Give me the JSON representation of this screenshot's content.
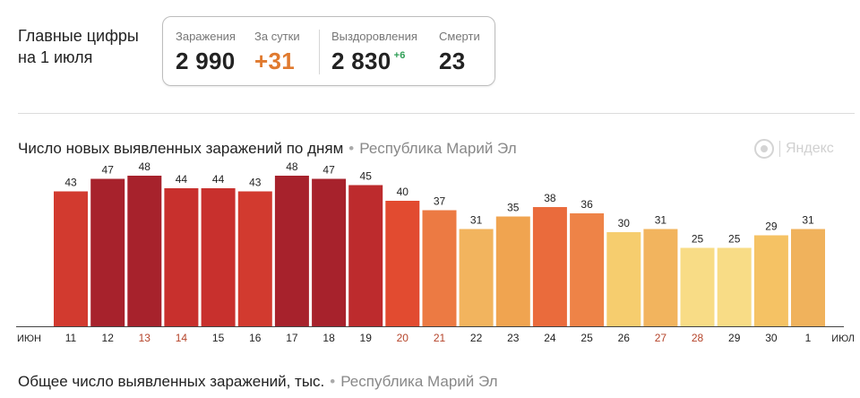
{
  "headline": {
    "line1": "Главные цифры",
    "line2": "на 1 июля"
  },
  "stats": {
    "infected_label": "Заражения",
    "infected_value": "2 990",
    "daily_label": "За сутки",
    "daily_value": "+31",
    "recovered_label": "Выздоровления",
    "recovered_value": "2 830",
    "recovered_delta": "+6",
    "deaths_label": "Смерти",
    "deaths_value": "23"
  },
  "chart_heading": {
    "title": "Число новых выявленных заражений по дням",
    "separator": "•",
    "region": "Республика Марий Эл"
  },
  "brand": {
    "text": "Яндекс",
    "icon": "yandex-logo-icon"
  },
  "bottom_heading": {
    "title": "Общее число выявленных заражений, тыс.",
    "separator": "•",
    "region": "Республика Марий Эл"
  },
  "chart_data": {
    "type": "bar",
    "title": "Число новых выявленных заражений по дням",
    "xlabel": "",
    "ylabel": "",
    "ylim": [
      0,
      50
    ],
    "grid": false,
    "axis_start_label": "ИЮН",
    "axis_end_label": "ИЮЛ",
    "categories": [
      "11",
      "12",
      "13",
      "14",
      "15",
      "16",
      "17",
      "18",
      "19",
      "20",
      "21",
      "22",
      "23",
      "24",
      "25",
      "26",
      "27",
      "28",
      "29",
      "30",
      "1"
    ],
    "values": [
      43,
      47,
      48,
      44,
      44,
      43,
      48,
      47,
      45,
      40,
      37,
      31,
      35,
      38,
      36,
      30,
      31,
      25,
      25,
      29,
      31
    ],
    "weekend_categories": [
      "13",
      "14",
      "20",
      "21",
      "27",
      "28"
    ],
    "weekend_label_color": "#b5442a",
    "label_color": "#222222",
    "bar_colors": [
      "#d23a2f",
      "#a7222c",
      "#a7222c",
      "#c8302d",
      "#c8302d",
      "#d23a2f",
      "#a7222c",
      "#a7222c",
      "#bd2b2d",
      "#e24b30",
      "#ec7a43",
      "#f2b45e",
      "#f0a450",
      "#ea6b3c",
      "#ee8347",
      "#f6cd6e",
      "#f2b45e",
      "#f8dc86",
      "#f8dc86",
      "#f5c264",
      "#f0b25c"
    ]
  }
}
